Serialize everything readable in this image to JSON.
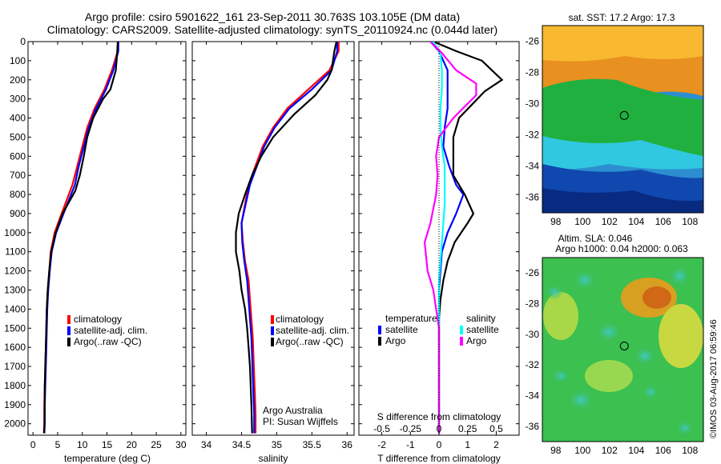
{
  "header": {
    "line1": "Argo profile: csiro 5901622_161 23-Sep-2011 30.763S 103.105E (DM data)",
    "line2": "Climatology: CARS2009. Satellite-adjusted climatology: synTS_20110924.nc (0.044d later)"
  },
  "colors": {
    "climatology": "#ff0000",
    "satellite": "#0000ff",
    "argo": "#000000",
    "sal_satellite": "#00ffff",
    "sal_argo": "#ff00ff"
  },
  "chart_data": [
    {
      "type": "line",
      "id": "temperature",
      "xlabel": "temperature (deg C)",
      "ylabel": "",
      "xlim": [
        -1,
        31
      ],
      "ylim": [
        2060,
        0
      ],
      "xticks": [
        0,
        5,
        10,
        15,
        20,
        25,
        30
      ],
      "yticks": [
        0,
        100,
        200,
        300,
        400,
        500,
        600,
        700,
        800,
        900,
        1000,
        1100,
        1200,
        1300,
        1400,
        1500,
        1600,
        1700,
        1800,
        1900,
        2000
      ],
      "legend": [
        "climatology",
        "satellite-adj. clim.",
        "Argo(..raw -QC)"
      ],
      "series": [
        {
          "name": "climatology",
          "color": "#ff0000",
          "x": [
            17.3,
            17.2,
            16.0,
            14.5,
            12.5,
            11.0,
            10.0,
            9.0,
            8.0,
            5.8,
            4.4,
            3.6,
            3.3,
            3.0,
            2.8,
            2.7,
            2.6,
            2.5,
            2.4,
            2.3,
            2.3,
            2.2
          ],
          "y": [
            0,
            50,
            150,
            250,
            350,
            450,
            550,
            650,
            750,
            900,
            1000,
            1100,
            1200,
            1300,
            1400,
            1500,
            1600,
            1700,
            1800,
            1900,
            2000,
            2050
          ]
        },
        {
          "name": "satellite-adj. clim.",
          "color": "#0000ff",
          "x": [
            17.3,
            17.3,
            16.3,
            14.8,
            12.8,
            11.3,
            10.3,
            9.3,
            8.5,
            6.2,
            4.7,
            3.8,
            3.4,
            3.1,
            2.9,
            2.8,
            2.7,
            2.6,
            2.5,
            2.4,
            2.4,
            2.3
          ],
          "y": [
            0,
            50,
            150,
            250,
            350,
            450,
            550,
            650,
            750,
            900,
            1000,
            1100,
            1200,
            1300,
            1400,
            1500,
            1600,
            1700,
            1800,
            1900,
            2000,
            2050
          ]
        },
        {
          "name": "Argo(..raw -QC)",
          "color": "#000000",
          "x": [
            17.2,
            17.1,
            16.8,
            15.7,
            14.2,
            12.2,
            11.0,
            10.3,
            9.5,
            8.6,
            6.0,
            4.6,
            3.7,
            3.3,
            3.0,
            2.8,
            2.7,
            2.6,
            2.5,
            2.4,
            2.4,
            2.3
          ],
          "y": [
            0,
            50,
            150,
            250,
            300,
            400,
            500,
            600,
            700,
            780,
            900,
            1000,
            1100,
            1200,
            1300,
            1400,
            1500,
            1600,
            1700,
            1800,
            1900,
            2050
          ]
        }
      ]
    },
    {
      "type": "line",
      "id": "salinity",
      "xlabel": "salinity",
      "ylabel": "",
      "xlim": [
        33.8,
        36.1
      ],
      "ylim": [
        2060,
        0
      ],
      "xticks": [
        34,
        34.5,
        35,
        35.5,
        36
      ],
      "legend": [
        "climatology",
        "satellite-adj. clim.",
        "Argo(..raw -QC)"
      ],
      "annotation": [
        "Argo Australia",
        "PI: Susan Wijffels"
      ],
      "series": [
        {
          "name": "climatology",
          "color": "#ff0000",
          "x": [
            35.88,
            35.88,
            35.75,
            35.45,
            35.15,
            34.95,
            34.8,
            34.7,
            34.6,
            34.55,
            34.5,
            34.52,
            34.55,
            34.6,
            34.62,
            34.64,
            34.66,
            34.67,
            34.68,
            34.69,
            34.7,
            34.7
          ],
          "y": [
            0,
            50,
            150,
            250,
            350,
            450,
            550,
            650,
            750,
            850,
            950,
            1050,
            1150,
            1250,
            1350,
            1450,
            1550,
            1650,
            1750,
            1850,
            1950,
            2050
          ]
        },
        {
          "name": "satellite-adj. clim.",
          "color": "#0000ff",
          "x": [
            35.86,
            35.86,
            35.78,
            35.5,
            35.18,
            34.97,
            34.82,
            34.72,
            34.62,
            34.56,
            34.5,
            34.51,
            34.54,
            34.58,
            34.6,
            34.62,
            34.64,
            34.65,
            34.66,
            34.67,
            34.68,
            34.68
          ],
          "y": [
            0,
            50,
            150,
            250,
            350,
            450,
            550,
            650,
            750,
            850,
            950,
            1050,
            1150,
            1250,
            1350,
            1450,
            1550,
            1650,
            1750,
            1850,
            1950,
            2050
          ]
        },
        {
          "name": "Argo(..raw -QC)",
          "color": "#000000",
          "x": [
            35.85,
            35.82,
            35.78,
            35.72,
            35.55,
            35.25,
            34.95,
            34.78,
            34.65,
            34.55,
            34.46,
            34.42,
            34.42,
            34.47,
            34.5,
            34.55,
            34.58,
            34.6,
            34.62,
            34.63,
            34.64,
            34.65
          ],
          "y": [
            0,
            50,
            150,
            200,
            280,
            380,
            500,
            600,
            700,
            800,
            900,
            1000,
            1100,
            1200,
            1300,
            1400,
            1500,
            1600,
            1700,
            1800,
            1900,
            2050
          ]
        }
      ]
    },
    {
      "type": "line",
      "id": "differences",
      "xlabel": "T difference from climatology",
      "xlabel_top": "S difference from climatology",
      "xlim": [
        -2.8,
        2.8
      ],
      "ylim": [
        2060,
        0
      ],
      "xticks": [
        -2,
        -1,
        0,
        1,
        2
      ],
      "xticks_s_labels": [
        "-0.5",
        "-0.25",
        "0",
        "0.25",
        "0.5"
      ],
      "legend_titles": [
        "temperature",
        "salinity"
      ],
      "legend": [
        "satellite",
        "Argo",
        "satellite",
        "Argo"
      ],
      "series": [
        {
          "name": "temperature satellite",
          "color": "#0000ff",
          "x": [
            -0.3,
            0,
            0.3,
            0.3,
            0.3,
            0.2,
            0.15,
            0.35,
            0.6,
            0.85,
            0.6,
            0.3,
            0.1,
            0.05,
            0,
            0,
            0,
            0,
            0,
            0,
            0,
            0
          ],
          "y": [
            0,
            50,
            150,
            250,
            350,
            450,
            550,
            650,
            750,
            800,
            900,
            1000,
            1100,
            1200,
            1300,
            1400,
            1500,
            1600,
            1700,
            1800,
            1900,
            2050
          ]
        },
        {
          "name": "temperature Argo",
          "color": "#000000",
          "x": [
            -0.2,
            0.6,
            1.5,
            2.2,
            1.6,
            0.7,
            0.5,
            0.5,
            0.5,
            0.9,
            1.2,
            1.0,
            0.55,
            0.3,
            0.15,
            0.05,
            0,
            0,
            0,
            0,
            0,
            0
          ],
          "y": [
            0,
            50,
            100,
            200,
            260,
            400,
            500,
            600,
            700,
            800,
            900,
            950,
            1050,
            1150,
            1250,
            1350,
            1450,
            1600,
            1700,
            1800,
            1900,
            2050
          ]
        },
        {
          "name": "salinity satellite",
          "color": "#00ffff",
          "x": [
            -0.2,
            0.05,
            0.1,
            0.1,
            0.05,
            0.05,
            0.1,
            0.2,
            0.2,
            0.2,
            0.15,
            0.1,
            0.05,
            0,
            0,
            0,
            0,
            0,
            0,
            0,
            0
          ],
          "y": [
            0,
            60,
            150,
            250,
            350,
            450,
            550,
            650,
            750,
            850,
            950,
            1050,
            1150,
            1250,
            1350,
            1450,
            1550,
            1650,
            1750,
            1850,
            2050
          ]
        },
        {
          "name": "salinity Argo",
          "color": "#ff00ff",
          "x": [
            -0.3,
            0.1,
            0.6,
            1.3,
            1.3,
            0.5,
            0,
            -0.1,
            -0.05,
            -0.1,
            -0.3,
            -0.5,
            -0.4,
            -0.2,
            -0.1,
            0,
            0,
            0,
            0,
            0,
            0
          ],
          "y": [
            0,
            60,
            150,
            220,
            280,
            400,
            500,
            600,
            700,
            800,
            950,
            1050,
            1200,
            1300,
            1400,
            1500,
            1600,
            1700,
            1800,
            1900,
            2050
          ]
        }
      ]
    },
    {
      "type": "heatmap",
      "id": "sst-map",
      "title": "sat. SST: 17.2  Argo: 17.3",
      "xlim": [
        97,
        109
      ],
      "ylim": [
        -37,
        -25
      ],
      "xticks": [
        98,
        100,
        102,
        104,
        106,
        108
      ],
      "yticks": [
        -26,
        -28,
        -30,
        -32,
        -34,
        -36
      ],
      "marker": {
        "lon": 103.105,
        "lat": -30.763
      }
    },
    {
      "type": "heatmap",
      "id": "sla-map",
      "title": "Altim. SLA: 0.046",
      "subtitle": "Argo h1000: 0.04 h2000: 0.063",
      "xlim": [
        97,
        109
      ],
      "ylim": [
        -37,
        -25
      ],
      "xticks": [
        98,
        100,
        102,
        104,
        106,
        108
      ],
      "yticks": [
        -26,
        -28,
        -30,
        -32,
        -34,
        -36
      ],
      "marker": {
        "lon": 103.105,
        "lat": -30.763
      }
    }
  ],
  "footer": {
    "stamp": "©IMOS 03-Aug-2017 06:59:46"
  }
}
